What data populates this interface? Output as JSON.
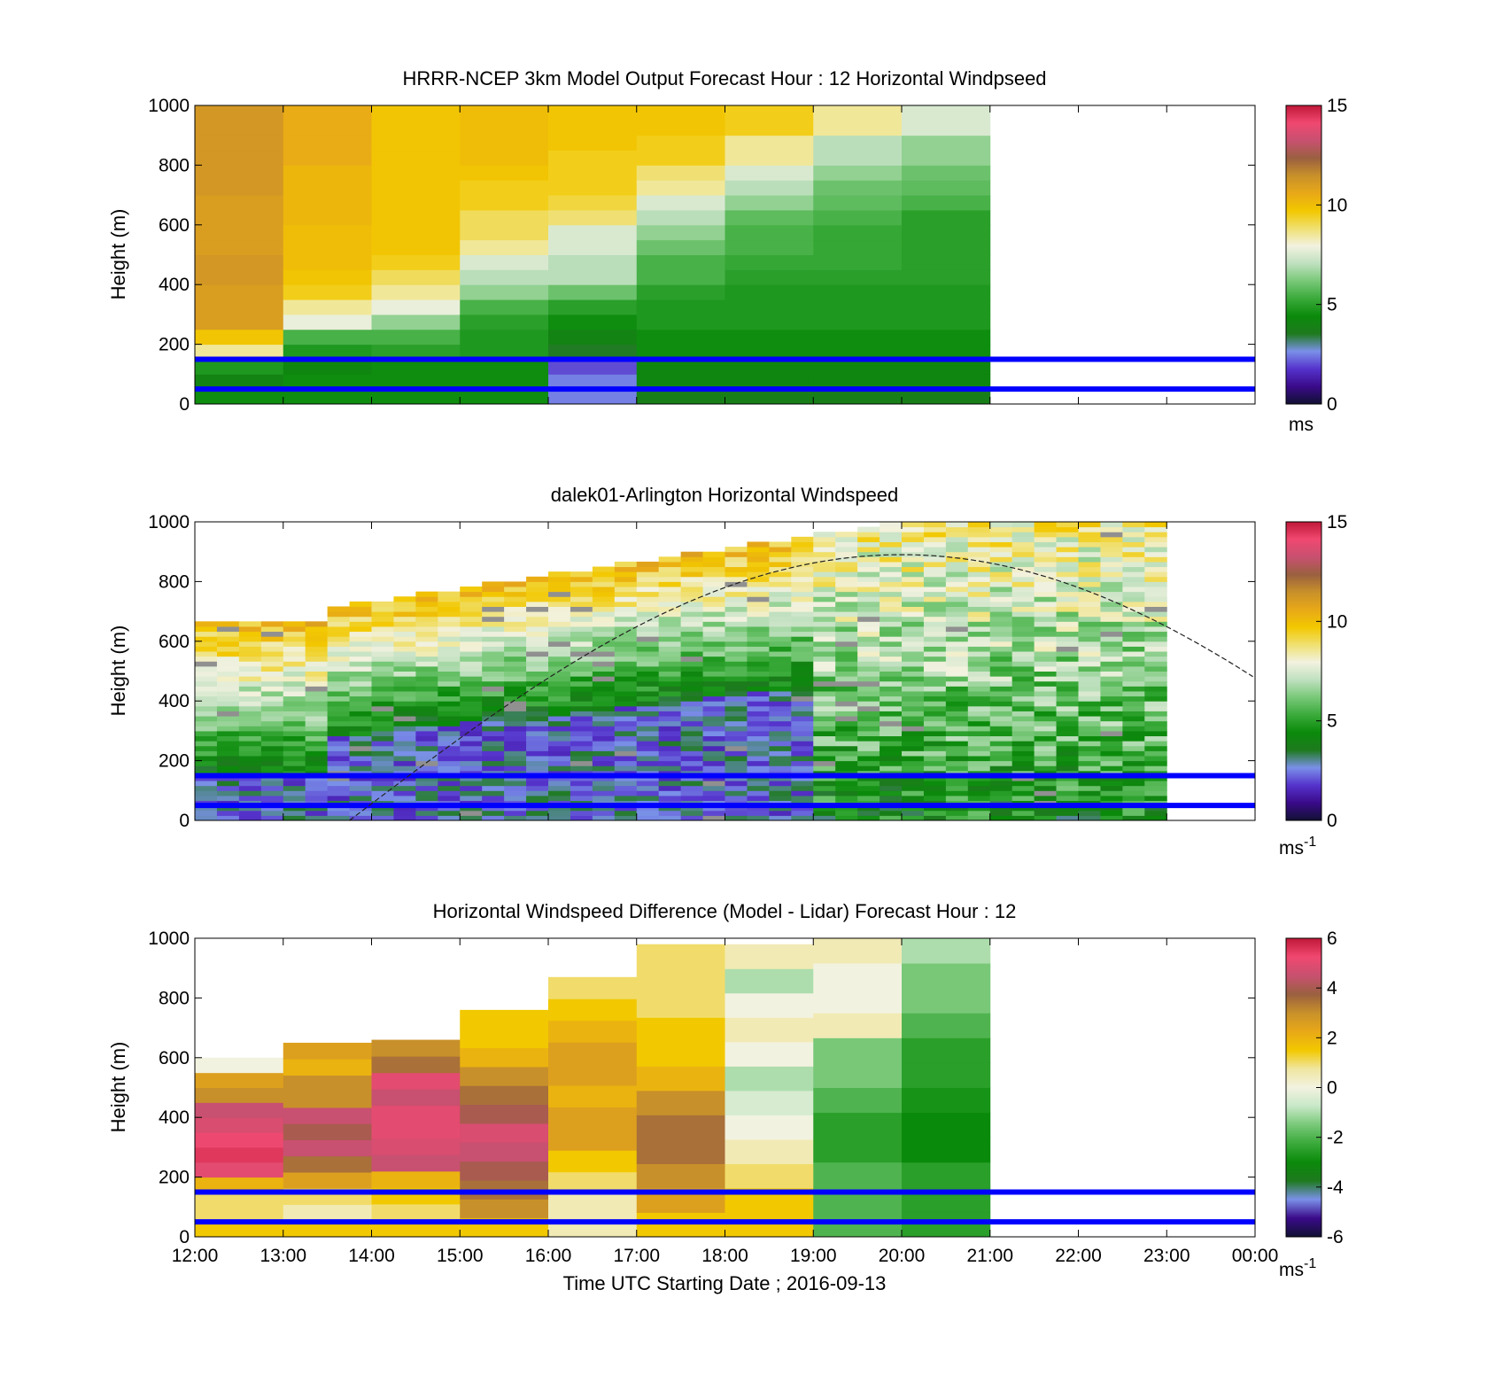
{
  "colors": {
    "speed_colormap": [
      "#111133",
      "#3a0a8a",
      "#5533cc",
      "#7a90e8",
      "#1e7a1e",
      "#0a8a0a",
      "#3aaa3a",
      "#78c878",
      "#bfe0bf",
      "#f2f2e0",
      "#f0e070",
      "#f2c800",
      "#e8a818",
      "#c8902a",
      "#9a6040",
      "#c85070",
      "#f04870",
      "#c01838"
    ],
    "diff_colormap": [
      "#111133",
      "#3a0a8a",
      "#7a90e8",
      "#1e7a1e",
      "#0a8a0a",
      "#3aaa3a",
      "#78c878",
      "#c8e8c8",
      "#f2f2e0",
      "#f0e6a0",
      "#f2c800",
      "#e8a818",
      "#c8902a",
      "#9a6040",
      "#c85070",
      "#f04870",
      "#c01838"
    ],
    "overlay_line": "#0000ff",
    "missing": "#909090"
  },
  "x_axis": {
    "ticks": [
      "12:00",
      "13:00",
      "14:00",
      "15:00",
      "16:00",
      "17:00",
      "18:00",
      "19:00",
      "20:00",
      "21:00",
      "22:00",
      "23:00",
      "00:00"
    ],
    "label": "Time UTC  Starting Date ; 2016-09-13"
  },
  "y_axis": {
    "ticks": [
      "0",
      "200",
      "400",
      "600",
      "800",
      "1000"
    ],
    "label": "Height (m)"
  },
  "chart_data": [
    {
      "type": "heatmap",
      "title": "HRRR-NCEP 3km Model Output   Forecast Hour : 12 Horizontal Windpseed",
      "ylabel": "Height (m)",
      "ylim": [
        0,
        1000
      ],
      "xlim": [
        "12:00",
        "00:00"
      ],
      "x": [
        "12:00",
        "13:00",
        "14:00",
        "15:00",
        "16:00",
        "17:00",
        "18:00",
        "19:00",
        "20:00"
      ],
      "y": [
        25,
        75,
        125,
        175,
        225,
        275,
        325,
        375,
        425,
        475,
        525,
        575,
        625,
        675,
        725,
        775,
        825,
        875,
        925,
        975
      ],
      "values": [
        [
          4.5,
          4.0,
          4.8,
          8.5,
          9.8,
          11.0,
          11.0,
          11.0,
          11.2,
          11.2,
          11.0,
          11.0,
          11.0,
          11.0,
          11.2,
          11.2,
          11.2,
          11.2,
          11.2,
          11.2
        ],
        [
          4.5,
          4.5,
          4.2,
          4.8,
          5.5,
          7.8,
          8.5,
          9.5,
          9.8,
          10.0,
          10.0,
          10.0,
          10.2,
          10.2,
          10.2,
          10.2,
          10.5,
          10.5,
          10.5,
          10.5
        ],
        [
          4.5,
          4.5,
          4.5,
          5.0,
          5.5,
          6.5,
          7.8,
          8.5,
          9.0,
          9.5,
          9.8,
          9.8,
          9.8,
          9.8,
          9.8,
          9.8,
          9.8,
          9.8,
          9.8,
          9.8
        ],
        [
          4.5,
          4.5,
          4.5,
          4.8,
          4.8,
          5.0,
          5.5,
          6.5,
          7.0,
          7.5,
          8.5,
          9.0,
          9.0,
          9.5,
          9.5,
          9.8,
          10.0,
          10.0,
          10.0,
          10.0
        ],
        [
          2.5,
          2.5,
          2.0,
          3.5,
          4.0,
          4.5,
          5.0,
          6.0,
          7.0,
          7.0,
          7.5,
          7.5,
          8.8,
          9.2,
          9.5,
          9.5,
          9.5,
          9.8,
          9.8,
          9.8
        ],
        [
          3.8,
          4.2,
          4.2,
          4.5,
          4.5,
          4.8,
          4.8,
          5.0,
          5.5,
          5.5,
          6.0,
          6.5,
          7.0,
          7.5,
          8.5,
          8.8,
          9.5,
          9.5,
          9.8,
          9.8
        ],
        [
          3.8,
          4.2,
          4.2,
          4.5,
          4.5,
          4.8,
          4.8,
          4.8,
          5.0,
          5.2,
          5.5,
          5.5,
          5.8,
          6.5,
          7.0,
          7.5,
          8.5,
          8.5,
          9.5,
          9.5
        ],
        [
          3.8,
          4.2,
          4.2,
          4.5,
          4.5,
          4.8,
          4.8,
          4.8,
          5.0,
          5.2,
          5.2,
          5.2,
          5.5,
          5.8,
          6.0,
          6.5,
          7.0,
          7.0,
          8.5,
          8.5
        ],
        [
          3.8,
          4.2,
          4.2,
          4.5,
          4.5,
          4.8,
          4.8,
          4.8,
          5.0,
          5.0,
          5.0,
          5.0,
          5.0,
          5.5,
          5.8,
          6.0,
          6.5,
          6.5,
          7.5,
          7.5
        ]
      ],
      "colorbar": {
        "ticks": [
          "0",
          "5",
          "10",
          "15"
        ],
        "range": [
          0,
          15
        ],
        "unit": "ms"
      },
      "hlines": [
        50,
        150
      ]
    },
    {
      "type": "heatmap",
      "title": "dalek01-Arlington  Horizontal Windspeed",
      "ylabel": "Height (m)",
      "ylim": [
        0,
        1000
      ],
      "xlim": [
        "12:00",
        "00:00"
      ],
      "colorbar": {
        "ticks": [
          "0",
          "5",
          "10",
          "15"
        ],
        "range": [
          0,
          15
        ],
        "unit": "ms",
        "unit_sup": "-1"
      },
      "hlines": [
        50,
        150
      ],
      "dashed_curve": {
        "peak_time": "20:00",
        "peak_height": 890,
        "start_time": "13:45",
        "end_time": "00:00",
        "end_height": 470
      }
    },
    {
      "type": "heatmap",
      "title": "Horizontal Windspeed Difference (Model - Lidar) Forecast Hour : 12",
      "ylabel": "Height (m)",
      "xlabel": "Time UTC  Starting Date ; 2016-09-13",
      "ylim": [
        0,
        1000
      ],
      "xlim": [
        "12:00",
        "00:00"
      ],
      "x": [
        "12:00",
        "13:00",
        "14:00",
        "15:00",
        "16:00",
        "17:00",
        "18:00",
        "19:00",
        "20:00"
      ],
      "column_tops": [
        600,
        650,
        660,
        760,
        870,
        980,
        980,
        1000,
        1000
      ],
      "values": [
        [
          1.5,
          1.0,
          1.0,
          2.0,
          5.0,
          5.5,
          5.2,
          4.8,
          4.5,
          3.0,
          2.5,
          0.0
        ],
        [
          1.5,
          0.5,
          1.0,
          2.5,
          3.5,
          4.5,
          4.0,
          4.5,
          3.0,
          3.0,
          2.0,
          2.5
        ],
        [
          1.5,
          1.0,
          1.5,
          2.0,
          4.5,
          4.8,
          5.0,
          5.0,
          4.5,
          5.0,
          3.5,
          3.0
        ],
        [
          1.5,
          3.0,
          3.5,
          4.0,
          4.5,
          4.8,
          4.0,
          3.5,
          3.0,
          2.0,
          1.5,
          1.5
        ],
        [
          0.5,
          0.5,
          1.0,
          1.5,
          2.5,
          2.5,
          2.0,
          2.5,
          2.5,
          2.0,
          1.5,
          1.0
        ],
        [
          1.5,
          2.5,
          3.0,
          3.5,
          3.5,
          3.0,
          2.0,
          1.5,
          1.5,
          1.0,
          1.0,
          1.0
        ],
        [
          1.5,
          1.5,
          1.0,
          0.5,
          0.0,
          -0.5,
          -1.0,
          0.0,
          0.5,
          0.0,
          -1.0,
          0.5
        ],
        [
          -2.0,
          -2.0,
          -2.0,
          -2.5,
          -2.5,
          -2.0,
          -1.5,
          -1.5,
          0.5,
          0.0,
          0.0,
          0.5
        ],
        [
          -2.5,
          -2.5,
          -2.5,
          -3.0,
          -3.0,
          -2.8,
          -2.5,
          -2.5,
          -2.0,
          -1.5,
          -1.5,
          -1.0
        ]
      ],
      "colorbar": {
        "ticks": [
          "-6",
          "-4",
          "-2",
          "0",
          "2",
          "4",
          "6"
        ],
        "range": [
          -6,
          6
        ],
        "unit": "ms",
        "unit_sup": "-1"
      },
      "hlines": [
        50,
        150
      ]
    }
  ]
}
